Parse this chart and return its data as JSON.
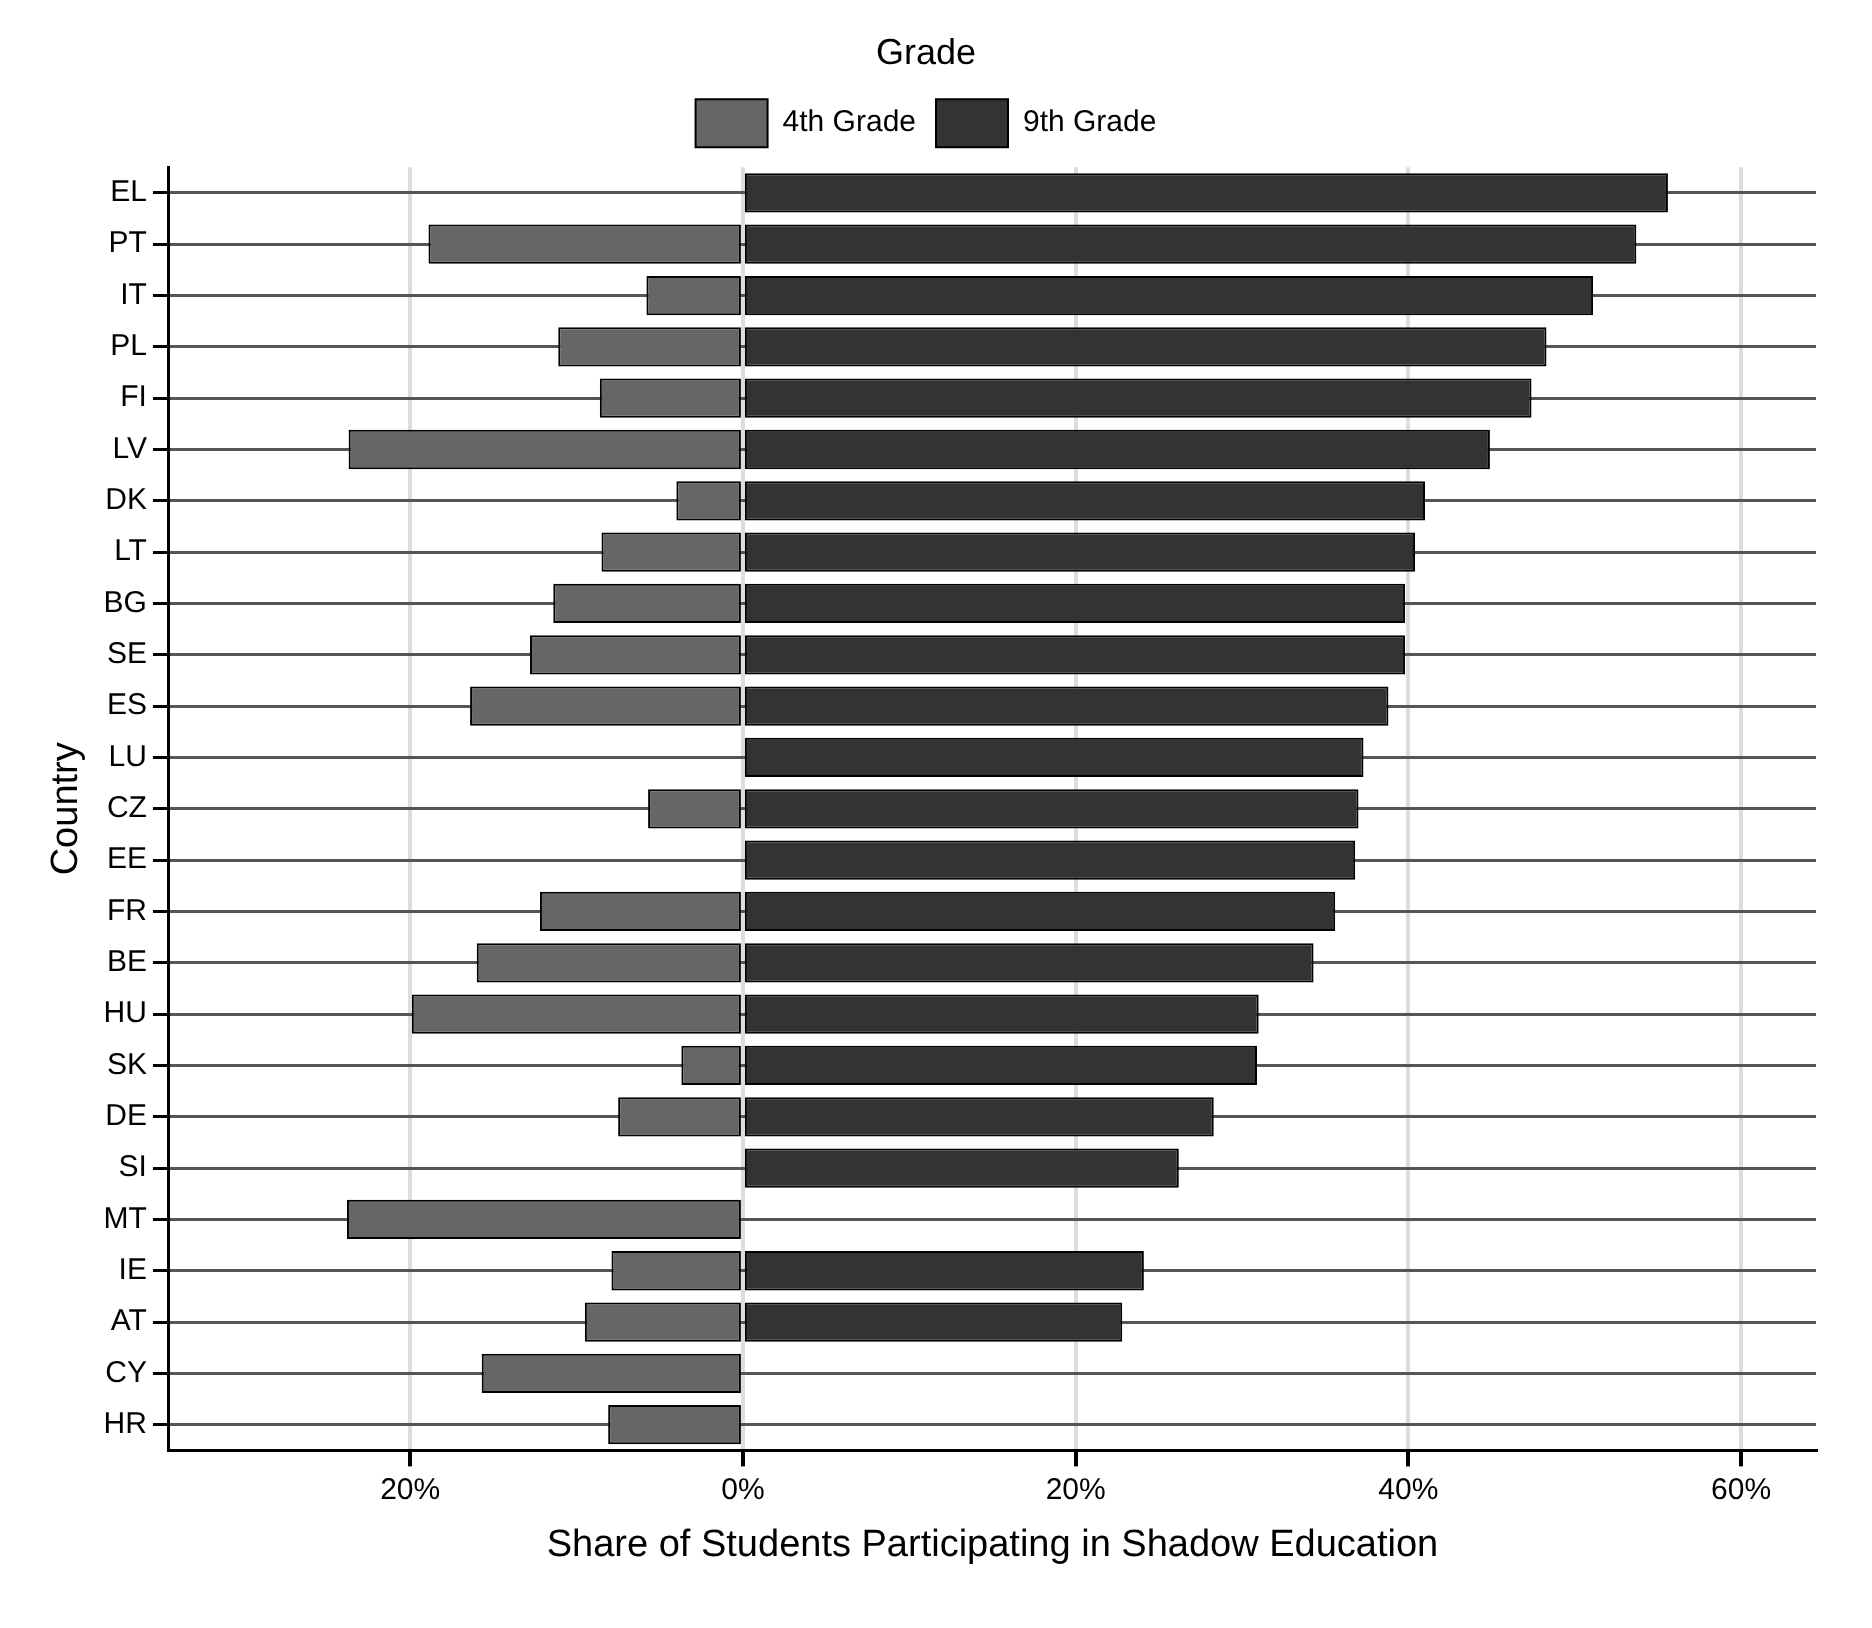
{
  "chart_data": {
    "type": "bar",
    "orientation": "horizontal",
    "stacked": true,
    "xlabel": "Share of Students Participating in Shadow Education",
    "ylabel": "Country",
    "legend_title": "Grade",
    "legend": "top",
    "categories": [
      "EL",
      "PT",
      "IT",
      "PL",
      "FI",
      "LV",
      "DK",
      "LT",
      "BG",
      "SE",
      "ES",
      "LU",
      "CZ",
      "EE",
      "FR",
      "BE",
      "HU",
      "SK",
      "DE",
      "SI",
      "MT",
      "IE",
      "AT",
      "CY",
      "HR"
    ],
    "series": [
      {
        "name": "4th Grade",
        "color": "#666666",
        "values": [
          null,
          -18.9,
          -5.8,
          -11.1,
          -8.6,
          -23.7,
          -4.0,
          -8.5,
          -11.4,
          -12.8,
          -16.4,
          null,
          -5.7,
          null,
          -12.2,
          -16.0,
          -19.9,
          -3.7,
          -7.5,
          null,
          -23.8,
          -7.9,
          -9.5,
          -15.7,
          -8.1
        ]
      },
      {
        "name": "9th Grade",
        "color": "#333333",
        "values": [
          55.6,
          53.7,
          51.1,
          48.3,
          47.4,
          44.9,
          41.0,
          40.4,
          39.8,
          39.8,
          38.8,
          37.3,
          37.0,
          36.8,
          35.6,
          34.3,
          31.0,
          30.9,
          28.3,
          26.2,
          null,
          24.1,
          22.8,
          null,
          null
        ]
      }
    ],
    "xlim": [
      -34.5,
      64.5
    ],
    "xticks": [
      {
        "value": -20,
        "label": "20%"
      },
      {
        "value": 0,
        "label": "0%"
      },
      {
        "value": 20,
        "label": "20%"
      },
      {
        "value": 40,
        "label": "40%"
      },
      {
        "value": 60,
        "label": "60%"
      }
    ],
    "grid": true
  }
}
